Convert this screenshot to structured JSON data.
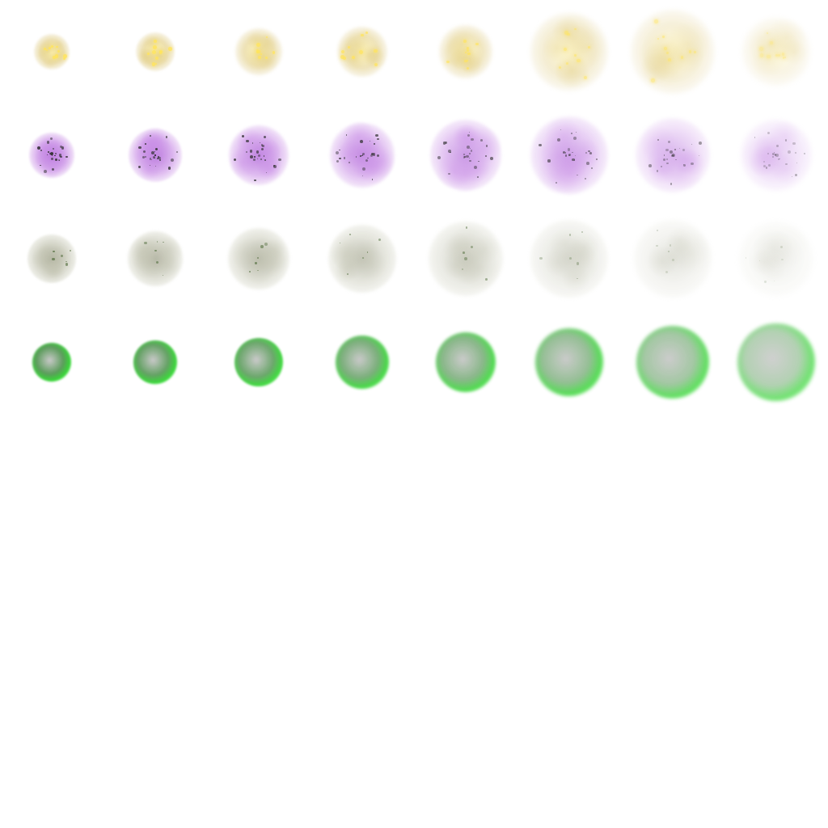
{
  "sprite_sheet": {
    "frames_per_row": 8,
    "rows": [
      {
        "effect": "golden-sparkle-burst",
        "frame_icon": "sparkle-puff-icon",
        "core_color": "#fff2a8",
        "mid_color": "#e3d08a",
        "edge_color": "#f4efe0",
        "speck_color": "#ffe45c",
        "speck_count": 10,
        "speck_kind": "glow",
        "frames": [
          {
            "opacity": 0.95,
            "radius": 22,
            "haze": 0.1
          },
          {
            "opacity": 0.92,
            "radius": 24,
            "haze": 0.15
          },
          {
            "opacity": 0.88,
            "radius": 29,
            "haze": 0.25
          },
          {
            "opacity": 0.85,
            "radius": 31,
            "haze": 0.3
          },
          {
            "opacity": 0.78,
            "radius": 33,
            "haze": 0.35
          },
          {
            "opacity": 0.62,
            "radius": 48,
            "haze": 0.55
          },
          {
            "opacity": 0.55,
            "radius": 52,
            "haze": 0.65
          },
          {
            "opacity": 0.4,
            "radius": 42,
            "haze": 0.75
          }
        ]
      },
      {
        "effect": "purple-spore-cloud",
        "frame_icon": "spore-cloud-icon",
        "core_color": "#b066d8",
        "mid_color": "#c98ee6",
        "edge_color": "#eedcf6",
        "speck_color": "#2e2e2e",
        "speck_count": 26,
        "speck_kind": "dark",
        "frames": [
          {
            "opacity": 0.95,
            "radius": 28,
            "haze": 0.1
          },
          {
            "opacity": 0.9,
            "radius": 33,
            "haze": 0.15
          },
          {
            "opacity": 0.85,
            "radius": 37,
            "haze": 0.2
          },
          {
            "opacity": 0.8,
            "radius": 40,
            "haze": 0.25
          },
          {
            "opacity": 0.7,
            "radius": 44,
            "haze": 0.3
          },
          {
            "opacity": 0.62,
            "radius": 48,
            "haze": 0.4
          },
          {
            "opacity": 0.5,
            "radius": 46,
            "haze": 0.5
          },
          {
            "opacity": 0.35,
            "radius": 44,
            "haze": 0.6
          }
        ]
      },
      {
        "effect": "olive-dust-cloud",
        "frame_icon": "dust-cloud-icon",
        "core_color": "#9ea08a",
        "mid_color": "#c3c4b2",
        "edge_color": "#e6e7dc",
        "speck_color": "#4f6b3a",
        "speck_count": 6,
        "speck_kind": "dark",
        "frames": [
          {
            "opacity": 0.9,
            "radius": 30,
            "haze": 0.15
          },
          {
            "opacity": 0.82,
            "radius": 34,
            "haze": 0.2
          },
          {
            "opacity": 0.75,
            "radius": 38,
            "haze": 0.25
          },
          {
            "opacity": 0.65,
            "radius": 42,
            "haze": 0.3
          },
          {
            "opacity": 0.55,
            "radius": 46,
            "haze": 0.4
          },
          {
            "opacity": 0.42,
            "radius": 48,
            "haze": 0.5
          },
          {
            "opacity": 0.3,
            "radius": 48,
            "haze": 0.6
          },
          {
            "opacity": 0.2,
            "radius": 46,
            "haze": 0.7
          }
        ]
      },
      {
        "effect": "green-toxic-ring",
        "frame_icon": "toxic-ring-icon",
        "core_color": "#3f8a3f",
        "mid_color": "#2cd62c",
        "edge_color": "#b8f5b0",
        "speck_color": "#8bf08b",
        "speck_count": 0,
        "speck_kind": "none",
        "frames": [
          {
            "opacity": 1.0,
            "radius": 24,
            "haze": 0.1
          },
          {
            "opacity": 0.98,
            "radius": 27,
            "haze": 0.15
          },
          {
            "opacity": 0.95,
            "radius": 30,
            "haze": 0.2
          },
          {
            "opacity": 0.92,
            "radius": 33,
            "haze": 0.3
          },
          {
            "opacity": 0.88,
            "radius": 37,
            "haze": 0.4
          },
          {
            "opacity": 0.85,
            "radius": 42,
            "haze": 0.5
          },
          {
            "opacity": 0.8,
            "radius": 45,
            "haze": 0.6
          },
          {
            "opacity": 0.72,
            "radius": 48,
            "haze": 0.7
          }
        ]
      }
    ]
  }
}
